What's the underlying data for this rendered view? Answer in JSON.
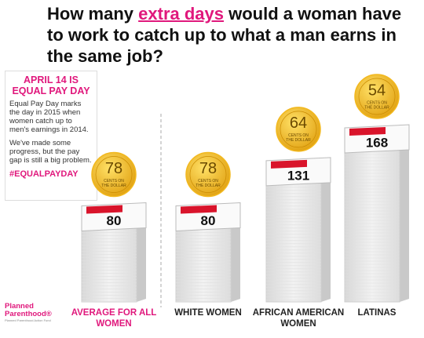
{
  "chart_data": {
    "type": "bar",
    "title_before": "How many ",
    "title_highlight": "extra days",
    "title_after": " would a woman have to work to catch up to what a man earns in the same job?",
    "categories": [
      "AVERAGE FOR ALL WOMEN",
      "WHITE WOMEN",
      "AFRICAN AMERICAN WOMEN",
      "LATINAS"
    ],
    "label_colors": [
      "#e0187c",
      "#222222",
      "#222222",
      "#222222"
    ],
    "values": [
      80,
      80,
      131,
      168
    ],
    "color": "#e4e4e4",
    "coin_values": [
      78,
      78,
      64,
      54
    ],
    "coin_label": [
      "CENTS ON",
      "THE DOLLAR"
    ],
    "coin_color": "#f2b81e"
  },
  "sidebar": {
    "heading": "APRIL 14 IS EQUAL PAY DAY",
    "paragraphs": [
      "Equal Pay Day marks the day in 2015 when women catch up to men's earnings in 2014.",
      "We've made some progress, but the pay gap is still a big problem."
    ],
    "hashtag": "#EQUALPAYDAY"
  },
  "logo": {
    "name": "Planned Parenthood®",
    "subtitle": "Planned Parenthood Action Fund"
  }
}
